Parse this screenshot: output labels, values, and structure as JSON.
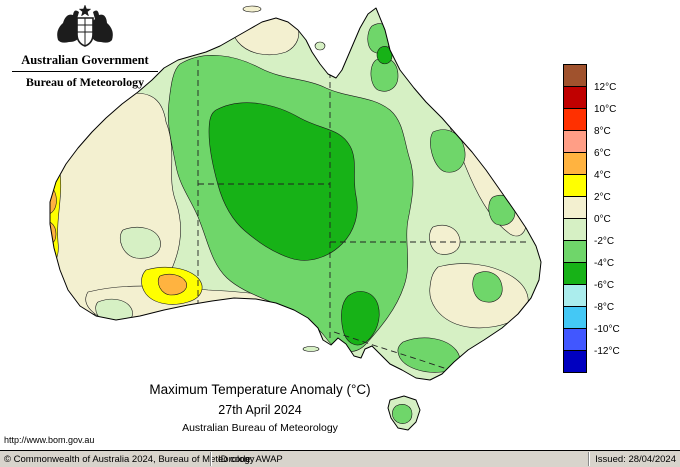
{
  "header": {
    "government": "Australian Government",
    "bureau": "Bureau of Meteorology"
  },
  "map": {
    "url": "http://www.bom.gov.au",
    "title": "Maximum Temperature Anomaly (°C)",
    "date": "27th April 2024",
    "org": "Australian Bureau of Meteorology"
  },
  "palette": {
    "pale_green": "#D6F0C4",
    "mid_green": "#6FD66A",
    "deep_green": "#17B217",
    "cream": "#F3F0D0",
    "yellow": "#FFFF00",
    "orange": "#FFB340",
    "outline": "#000000"
  },
  "legend": {
    "cells": [
      {
        "color": "#A0522D",
        "label": "12°C"
      },
      {
        "color": "#C00000",
        "label": "10°C"
      },
      {
        "color": "#FF3000",
        "label": "8°C"
      },
      {
        "color": "#FF9E86",
        "label": "6°C"
      },
      {
        "color": "#FFB340",
        "label": "4°C"
      },
      {
        "color": "#FFFF00",
        "label": "2°C"
      },
      {
        "color": "#F3F0D0",
        "label": "0°C"
      },
      {
        "color": "#D6F0C4",
        "label": "-2°C"
      },
      {
        "color": "#6FD66A",
        "label": "-4°C"
      },
      {
        "color": "#17B217",
        "label": "-6°C"
      },
      {
        "color": "#ABEDED",
        "label": "-8°C"
      },
      {
        "color": "#44C8F5",
        "label": "-10°C"
      },
      {
        "color": "#4157FF",
        "label": "-12°C"
      },
      {
        "color": "#0000C0",
        "label": ""
      }
    ]
  },
  "footer": {
    "copyright": "© Commonwealth of Australia 2024, Bureau of Meteorology",
    "id_code": "ID code: AWAP",
    "issued": "Issued: 28/04/2024"
  }
}
